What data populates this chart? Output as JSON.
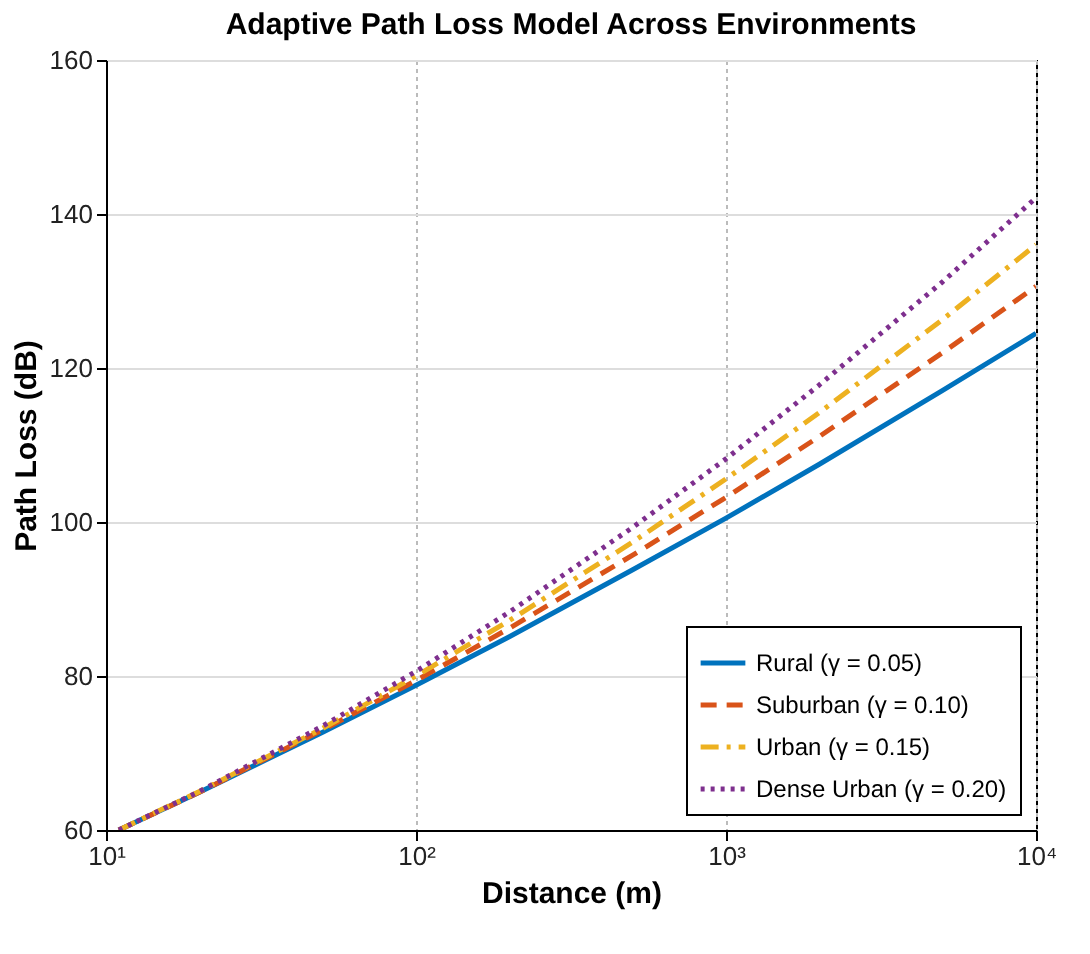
{
  "chart_data": {
    "type": "line",
    "title": "Adaptive Path Loss Model Across Environments",
    "xlabel": "Distance (m)",
    "ylabel": "Path Loss (dB)",
    "x": [
      11,
      20,
      50,
      100,
      200,
      500,
      1000,
      2000,
      5000,
      10000
    ],
    "series": [
      {
        "name": "Rural (γ = 0.05)",
        "color": "#0072bd",
        "line_style": "solid",
        "values": [
          60,
          64.9,
          72.7,
          78.8,
          85.1,
          93.8,
          100.5,
          107.5,
          117.1,
          124.5
        ]
      },
      {
        "name": "Suburban (γ = 0.10)",
        "color": "#d95319",
        "line_style": "dashed",
        "values": [
          60,
          64.9,
          73.0,
          79.4,
          86.2,
          95.7,
          103.2,
          111.1,
          122.0,
          130.6
        ]
      },
      {
        "name": "Urban (γ = 0.15)",
        "color": "#edb120",
        "line_style": "dashdot",
        "values": [
          60,
          65.0,
          73.2,
          80.0,
          87.2,
          97.4,
          105.6,
          114.2,
          126.3,
          136.0
        ]
      },
      {
        "name": "Dense Urban (γ = 0.20)",
        "color": "#7e2f8e",
        "line_style": "dotted",
        "values": [
          60,
          65.0,
          73.5,
          80.6,
          88.3,
          99.3,
          108.2,
          117.8,
          131.2,
          142.1
        ]
      }
    ],
    "log": "x",
    "xlim": [
      10,
      10000
    ],
    "ylim": [
      60,
      160
    ],
    "xticks": [
      {
        "value": 10,
        "label": "10¹"
      },
      {
        "value": 100,
        "label": "10²"
      },
      {
        "value": 1000,
        "label": "10³"
      },
      {
        "value": 10000,
        "label": "10⁴"
      }
    ],
    "yticks": [
      60,
      80,
      100,
      120,
      140,
      160
    ],
    "grid": true,
    "legend": "bottom right"
  }
}
